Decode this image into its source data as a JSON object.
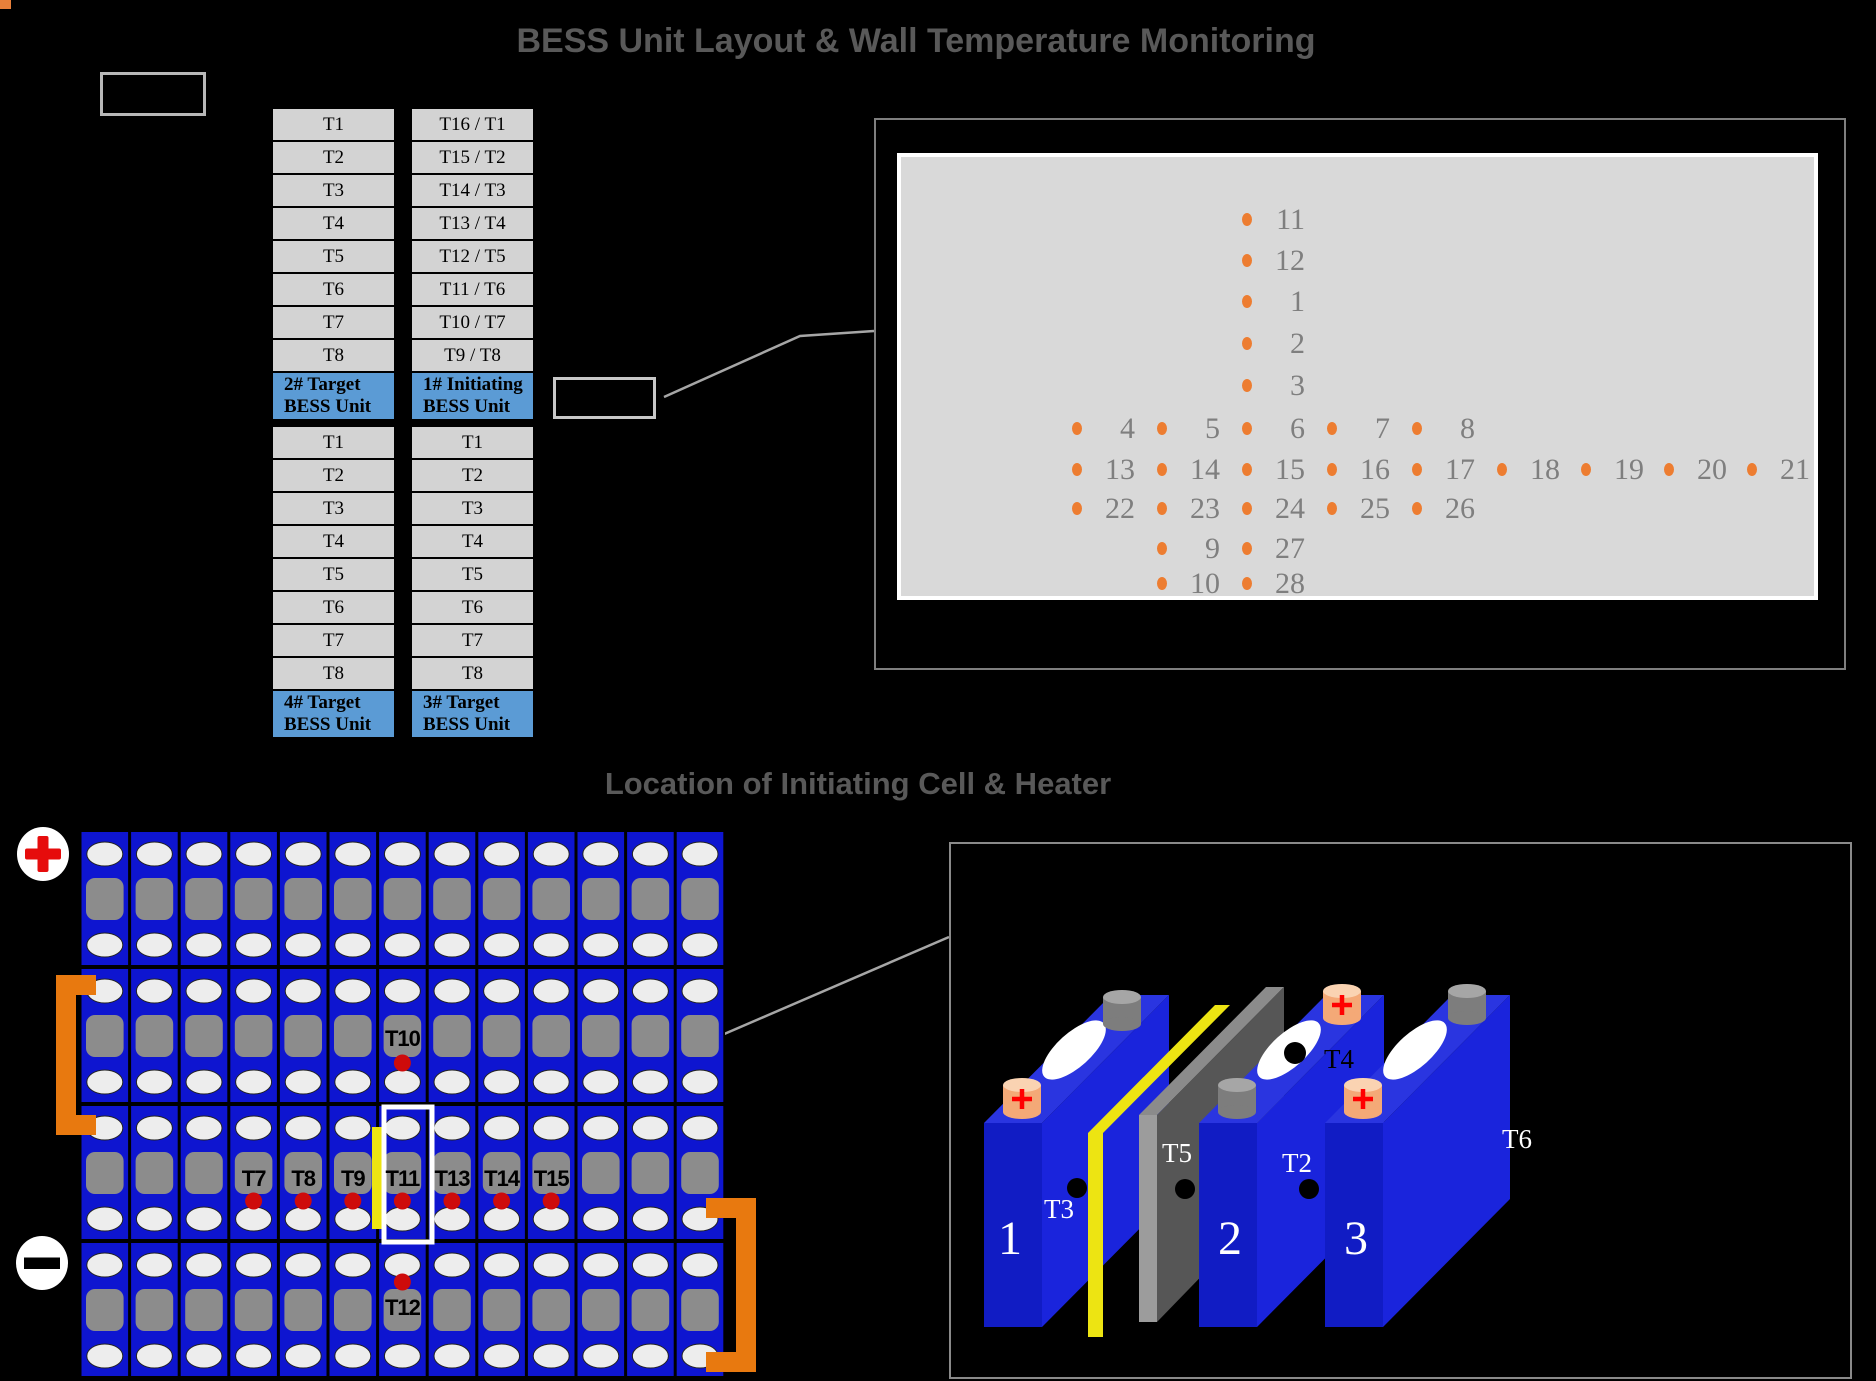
{
  "titles": {
    "main": "BESS Unit Layout & Wall Temperature Monitoring",
    "section": "Location of Initiating Cell & Heater"
  },
  "colors": {
    "title_gray": "#595959",
    "accent_orange": "#ED7D31",
    "table_cell_gray": "#D3D3D3",
    "header_blue": "#5B9BD5",
    "panel_gray": "#D9D9D9",
    "dot_label_gray": "#7F7F7F",
    "pack_blue": "#0E15D0",
    "heater_yellow": "#EDE412",
    "sensor_red": "#CE0B0B",
    "bracket_orange": "#E8790F",
    "connector_gray": "#A6A6A6"
  },
  "bess_units": {
    "unit2": {
      "header_line1": "2# Target",
      "header_line2": "BESS Unit",
      "rows": [
        "T1",
        "T2",
        "T3",
        "T4",
        "T5",
        "T6",
        "T7",
        "T8"
      ]
    },
    "unit1": {
      "header_line1": "1# Initiating",
      "header_line2": "BESS Unit",
      "rows": [
        "T16 / T1",
        "T15 / T2",
        "T14 / T3",
        "T13 / T4",
        "T12 / T5",
        "T11 / T6",
        "T10 / T7",
        "T9 / T8"
      ]
    },
    "unit4": {
      "header_line1": "4# Target",
      "header_line2": "BESS Unit",
      "rows": [
        "T1",
        "T2",
        "T3",
        "T4",
        "T5",
        "T6",
        "T7",
        "T8"
      ]
    },
    "unit3": {
      "header_line1": "3# Target",
      "header_line2": "BESS Unit",
      "rows": [
        "T1",
        "T2",
        "T3",
        "T4",
        "T5",
        "T6",
        "T7",
        "T8"
      ]
    }
  },
  "wall_monitor": {
    "dots": [
      {
        "n": "11",
        "c": 2,
        "r": 0
      },
      {
        "n": "12",
        "c": 2,
        "r": 1
      },
      {
        "n": "1",
        "c": 2,
        "r": 2
      },
      {
        "n": "2",
        "c": 2,
        "r": 3
      },
      {
        "n": "3",
        "c": 2,
        "r": 4
      },
      {
        "n": "4",
        "c": 0,
        "r": 5
      },
      {
        "n": "5",
        "c": 1,
        "r": 5
      },
      {
        "n": "6",
        "c": 2,
        "r": 5
      },
      {
        "n": "7",
        "c": 3,
        "r": 5
      },
      {
        "n": "8",
        "c": 4,
        "r": 5
      },
      {
        "n": "13",
        "c": 0,
        "r": 6
      },
      {
        "n": "14",
        "c": 1,
        "r": 6
      },
      {
        "n": "15",
        "c": 2,
        "r": 6
      },
      {
        "n": "16",
        "c": 3,
        "r": 6
      },
      {
        "n": "17",
        "c": 4,
        "r": 6
      },
      {
        "n": "18",
        "c": 5,
        "r": 6
      },
      {
        "n": "19",
        "c": 6,
        "r": 6
      },
      {
        "n": "20",
        "c": 7,
        "r": 6
      },
      {
        "n": "21",
        "c": 8,
        "r": 6
      },
      {
        "n": "22",
        "c": 0,
        "r": 7
      },
      {
        "n": "23",
        "c": 1,
        "r": 7
      },
      {
        "n": "24",
        "c": 2,
        "r": 7
      },
      {
        "n": "25",
        "c": 3,
        "r": 7
      },
      {
        "n": "26",
        "c": 4,
        "r": 7
      },
      {
        "n": "9",
        "c": 1,
        "r": 8
      },
      {
        "n": "27",
        "c": 2,
        "r": 8
      },
      {
        "n": "10",
        "c": 1,
        "r": 9
      },
      {
        "n": "28",
        "c": 2,
        "r": 9
      }
    ]
  },
  "pack": {
    "icons": {
      "positive": "plus-circle-icon",
      "negative": "minus-circle-icon"
    },
    "middle_row_sensors": [
      {
        "label": "T7",
        "col": 4
      },
      {
        "label": "T8",
        "col": 5
      },
      {
        "label": "T9",
        "col": 6
      },
      {
        "label": "T11",
        "col": 7
      },
      {
        "label": "T13",
        "col": 8
      },
      {
        "label": "T14",
        "col": 9
      },
      {
        "label": "T15",
        "col": 10
      }
    ],
    "top_sensor": {
      "label": "T10",
      "col": 7
    },
    "bottom_sensor": {
      "label": "T12",
      "col": 7
    }
  },
  "detail_view": {
    "cells": [
      {
        "number": "1",
        "side_sensor": "T3"
      },
      {
        "number": "2",
        "side_sensor": "T2",
        "face_sensor": "T4"
      },
      {
        "number": "3",
        "side_sensor": "T6"
      }
    ],
    "separator_sensor": "T5",
    "terminal_plus": "+"
  }
}
